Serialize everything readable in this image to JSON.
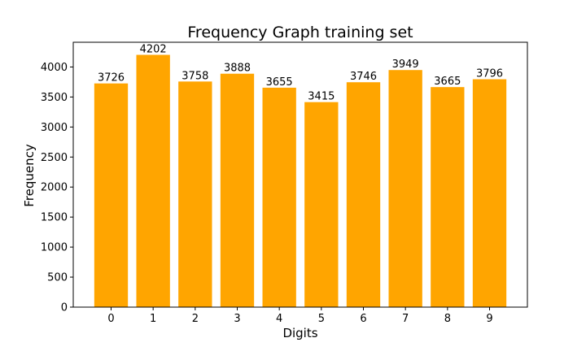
{
  "chart_data": {
    "type": "bar",
    "title": "Frequency Graph training set",
    "xlabel": "Digits",
    "ylabel": "Frequency",
    "categories": [
      "0",
      "1",
      "2",
      "3",
      "4",
      "5",
      "6",
      "7",
      "8",
      "9"
    ],
    "values": [
      3726,
      4202,
      3758,
      3888,
      3655,
      3415,
      3746,
      3949,
      3665,
      3796
    ],
    "ylim": [
      0,
      4412
    ],
    "yticks": [
      0,
      500,
      1000,
      1500,
      2000,
      2500,
      3000,
      3500,
      4000
    ],
    "bar_color": "#ffa500",
    "grid": false,
    "legend": "none"
  }
}
